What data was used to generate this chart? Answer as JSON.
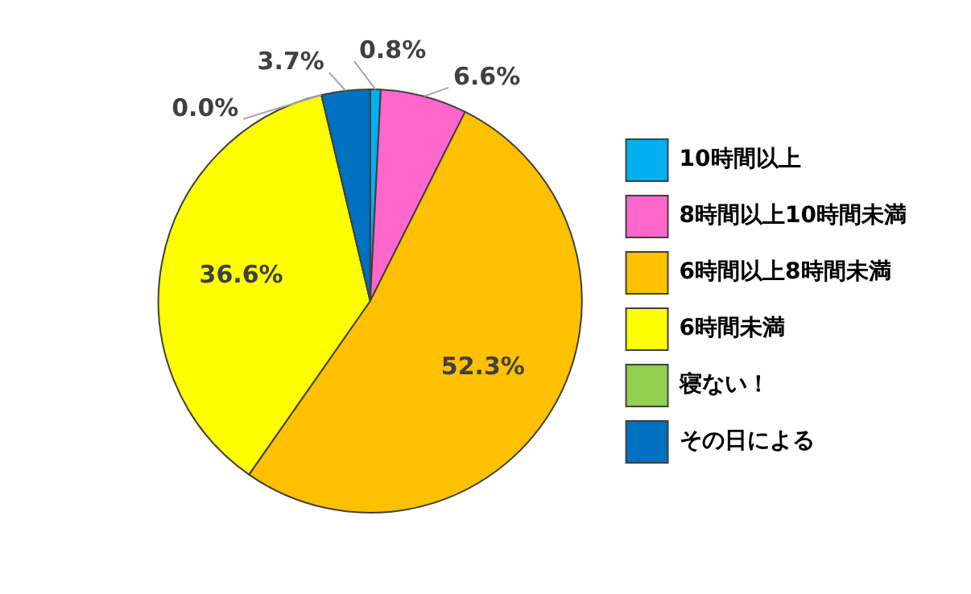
{
  "chart_data": {
    "type": "pie",
    "categories": [
      "10時間以上",
      "8時間以上10時間未満",
      "6時間以上8時間未満",
      "6時間未満",
      "寝ない！",
      "その日による"
    ],
    "values": [
      0.8,
      6.6,
      52.3,
      36.6,
      0.0,
      3.7
    ],
    "value_labels": [
      "0.8%",
      "6.6%",
      "52.3%",
      "36.6%",
      "0.0%",
      "3.7%"
    ],
    "colors": [
      "#00b0f0",
      "#ff66cc",
      "#ffc000",
      "#ffff00",
      "#92d050",
      "#0070c0"
    ],
    "legend": "right"
  }
}
